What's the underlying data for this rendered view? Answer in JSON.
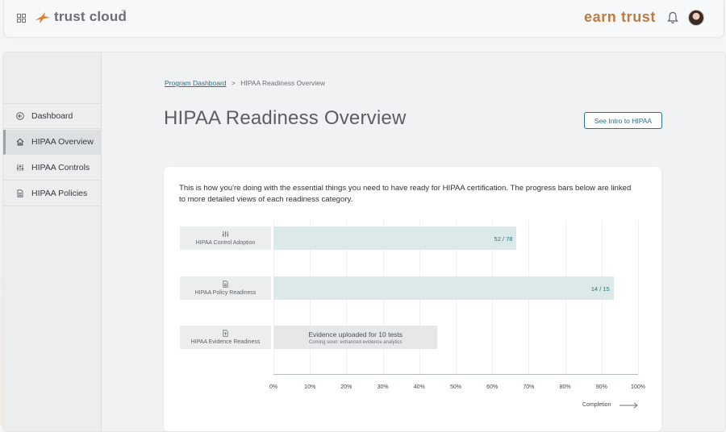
{
  "topbar": {
    "brand": "trust cloud",
    "tm": "™",
    "partner": "earn trust"
  },
  "sidebar": {
    "items": [
      {
        "label": "Dashboard",
        "icon": "circle-arrow-left-icon"
      },
      {
        "label": "HIPAA Overview",
        "icon": "home-icon",
        "active": true
      },
      {
        "label": "HIPAA Controls",
        "icon": "sliders-icon"
      },
      {
        "label": "HIPAA Policies",
        "icon": "document-icon"
      }
    ]
  },
  "breadcrumb": {
    "link": "Program Dashboard",
    "separator": ">",
    "current": "HIPAA Readiness Overview"
  },
  "page": {
    "title": "HIPAA Readiness Overview",
    "intro_button": "See Intro to HIPAA"
  },
  "card": {
    "description": "This is how you're doing with the essential things you need to have ready for HIPAA certification. The progress bars below are linked to more detailed views of each readiness category."
  },
  "chart_data": {
    "type": "bar",
    "orientation": "horizontal",
    "categories": [
      "HIPAA Control Adoption",
      "HIPAA Policy Readiness",
      "HIPAA Evidence Readiness"
    ],
    "series": [
      {
        "values": [
          66.7,
          93.3,
          null
        ],
        "labels": [
          "52 / 78",
          "14 / 15",
          ""
        ]
      }
    ],
    "evidence_note": {
      "main": "Evidence uploaded for 10 tests",
      "sub": "Coming soon: enhanced evidence analytics",
      "extent_pct": 45
    },
    "xticks": [
      "0%",
      "10%",
      "20%",
      "30%",
      "40%",
      "50%",
      "60%",
      "70%",
      "80%",
      "90%",
      "100%"
    ],
    "xlim": [
      0,
      100
    ],
    "xlabel": "Completion",
    "colors": {
      "bar": "#dce9e9",
      "value_text": "#2f6f80",
      "label_bg": "#eceeee"
    }
  }
}
